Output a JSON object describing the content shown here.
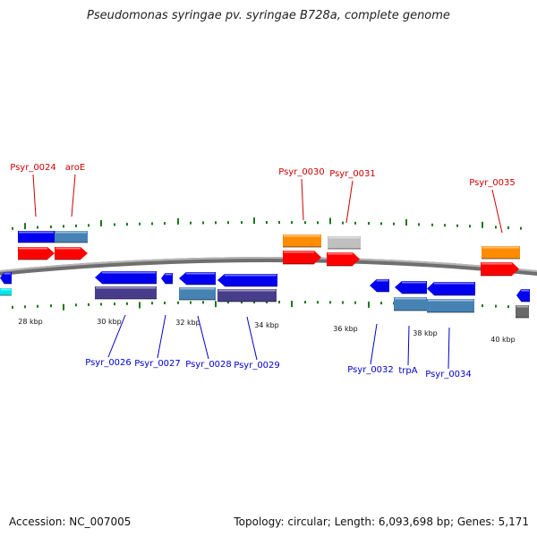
{
  "title": "Pseudomonas syringae pv. syringae B728a, complete genome",
  "footer": {
    "accession": "Accession: NC_007005",
    "stats": "Topology: circular; Length: 6,093,698 bp; Genes: 5,171"
  },
  "colors": {
    "backbone": "#888888",
    "ticks": "#1a7a1a",
    "top_labels": "#cc0000",
    "bottom_labels": "#0000cc",
    "gene_red": "#ff0000",
    "gene_orange": "#ff8c00",
    "gene_light_gray": "#c0c0c0",
    "gene_blue": "#0000ee",
    "gene_steel": "#4682b4",
    "gene_slate": "#483d8b",
    "gene_dark_gray": "#696969",
    "gene_cyan": "#00e5ee"
  },
  "scale_labels": [
    "28 kbp",
    "30 kbp",
    "32 kbp",
    "34 kbp",
    "36 kbp",
    "38 kbp",
    "40 kbp"
  ],
  "top_gene_labels": [
    "Psyr_0024",
    "aroE",
    "Psyr_0030",
    "Psyr_0031",
    "Psyr_0035"
  ],
  "bottom_gene_labels": [
    "Psyr_0026",
    "Psyr_0027",
    "Psyr_0028",
    "Psyr_0029",
    "Psyr_0032",
    "trpA",
    "Psyr_0034"
  ]
}
